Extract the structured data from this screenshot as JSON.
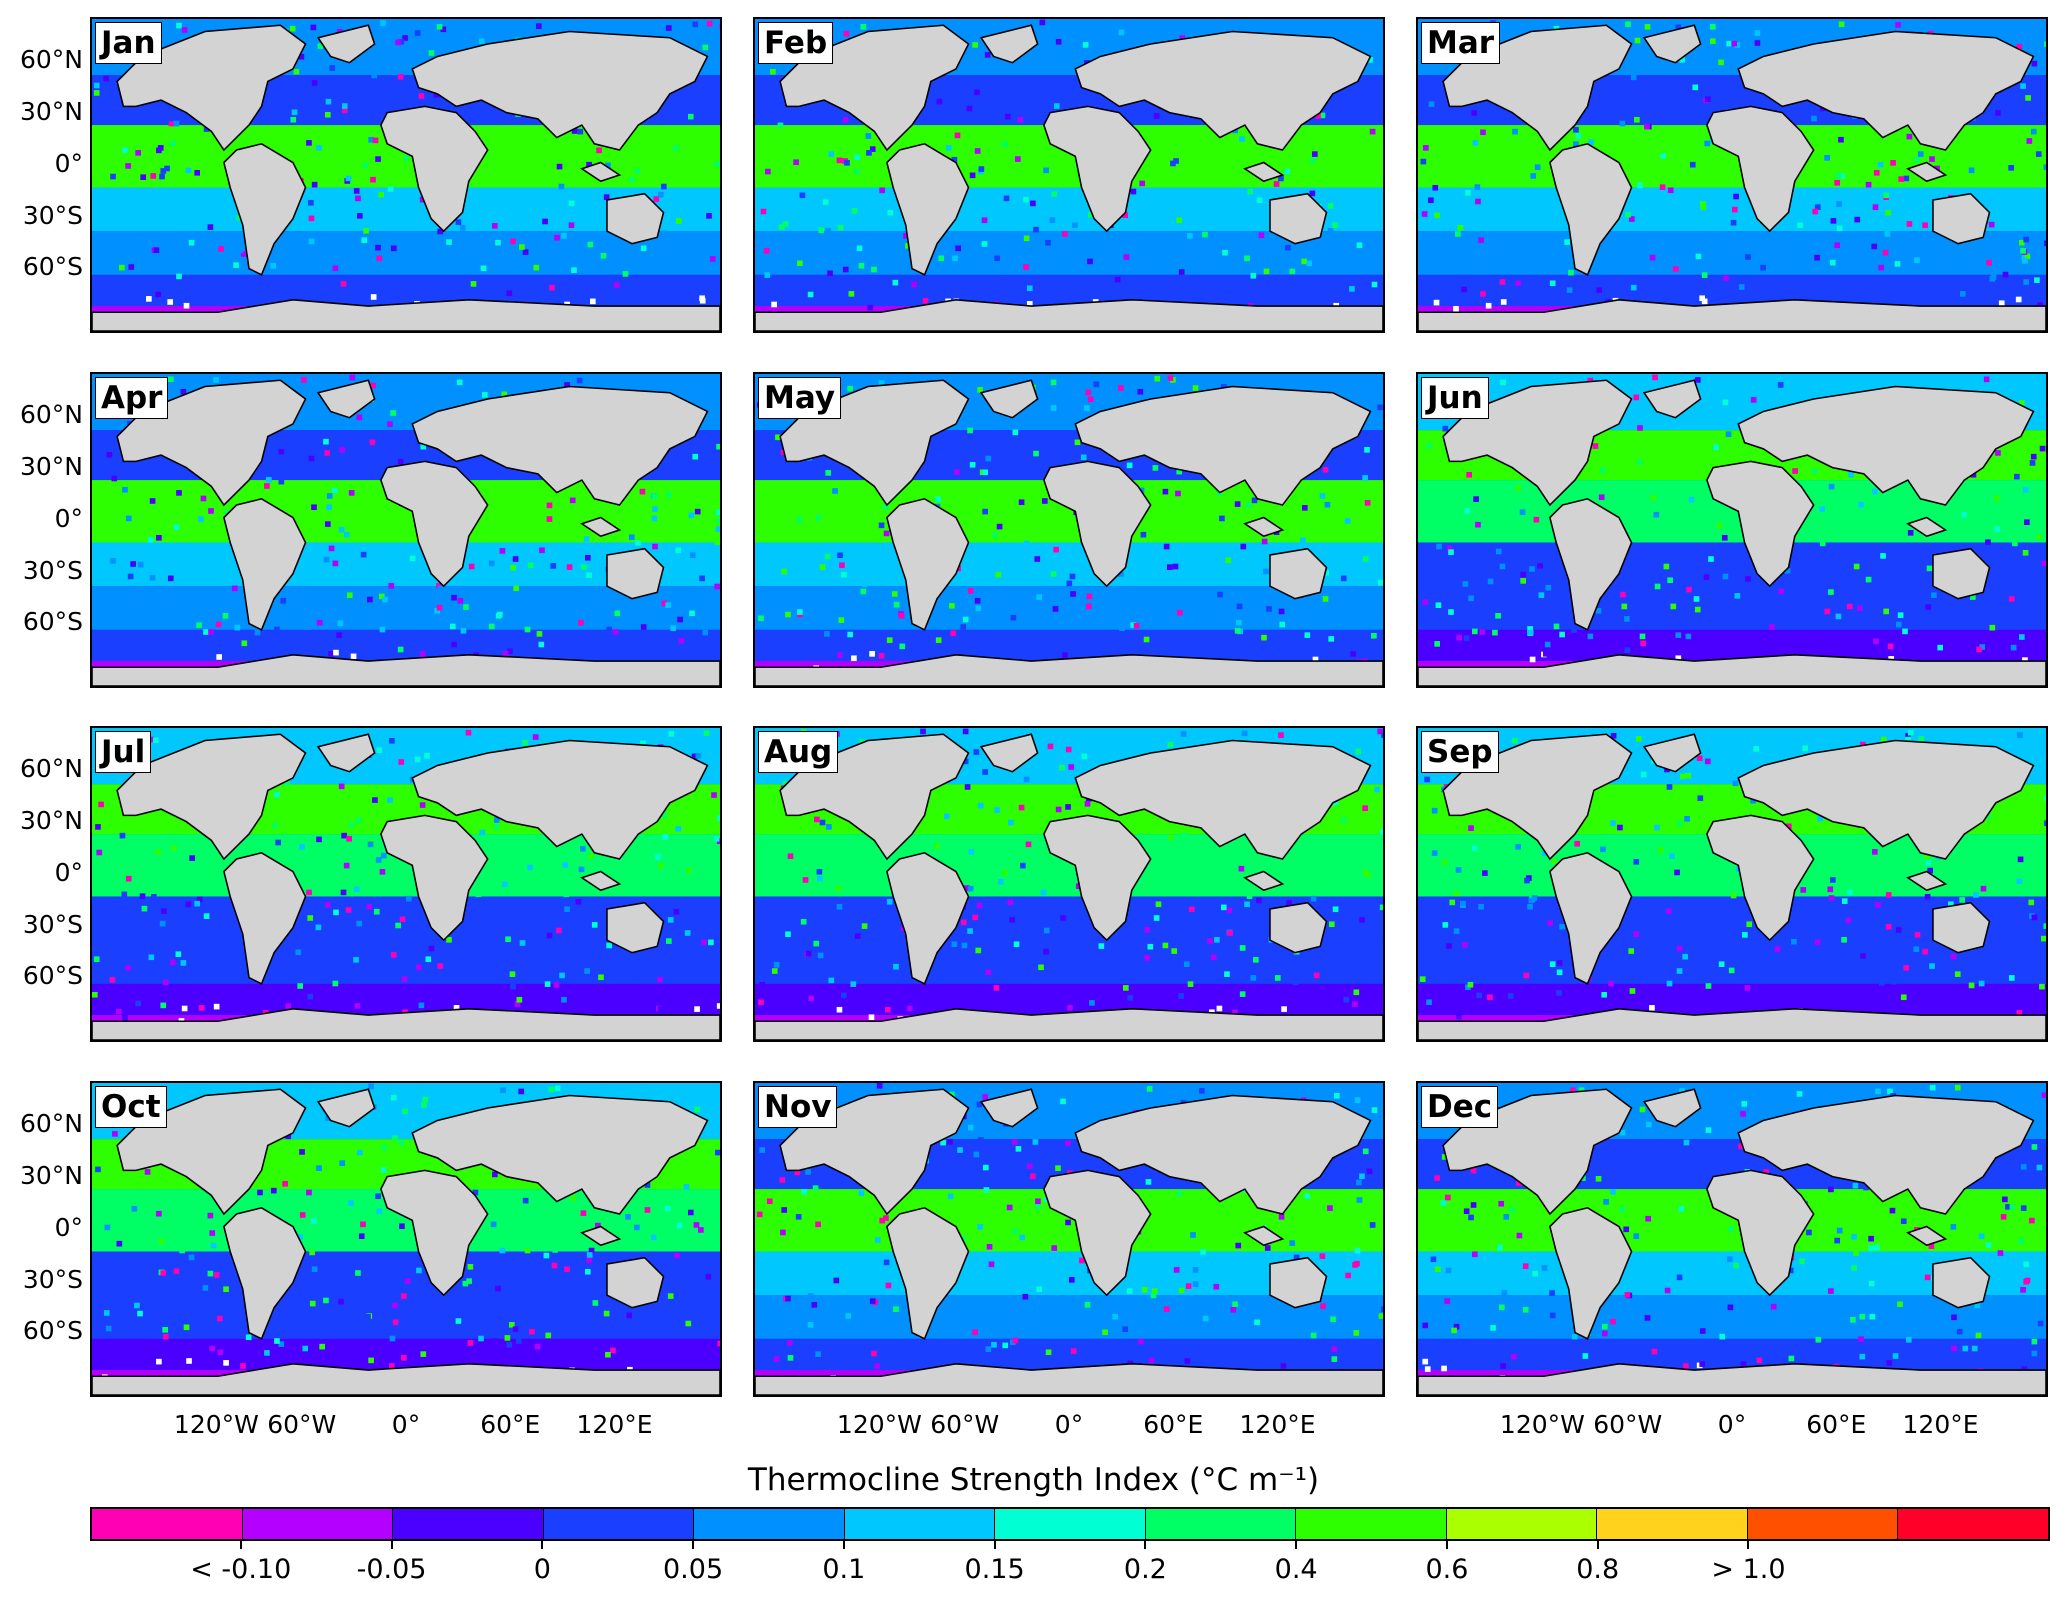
{
  "panels": [
    {
      "month": "Jan"
    },
    {
      "month": "Feb"
    },
    {
      "month": "Mar"
    },
    {
      "month": "Apr"
    },
    {
      "month": "May"
    },
    {
      "month": "Jun"
    },
    {
      "month": "Jul"
    },
    {
      "month": "Aug"
    },
    {
      "month": "Sep"
    },
    {
      "month": "Oct"
    },
    {
      "month": "Nov"
    },
    {
      "month": "Dec"
    }
  ],
  "lat_ticks": [
    "60°N",
    "30°N",
    "0°",
    "30°S",
    "60°S"
  ],
  "lon_ticks": [
    "120°W",
    "60°W",
    "0°",
    "60°E",
    "120°E"
  ],
  "colorbar": {
    "title": "Thermocline Strength Index (°C m⁻¹)",
    "colors": [
      "#ff00b4",
      "#b400ff",
      "#4b00ff",
      "#1a3fff",
      "#0090ff",
      "#00c8ff",
      "#00ffd2",
      "#00ff64",
      "#2dff00",
      "#aaff00",
      "#ffd21e",
      "#ff5000",
      "#ff0028"
    ],
    "tick_labels": [
      "< -0.10",
      "-0.05",
      "0",
      "0.05",
      "0.1",
      "0.15",
      "0.2",
      "0.4",
      "0.6",
      "0.8",
      "> 1.0"
    ]
  },
  "colors": {
    "land": "#d3d3d3",
    "ocean_default": "#1a3fff"
  }
}
